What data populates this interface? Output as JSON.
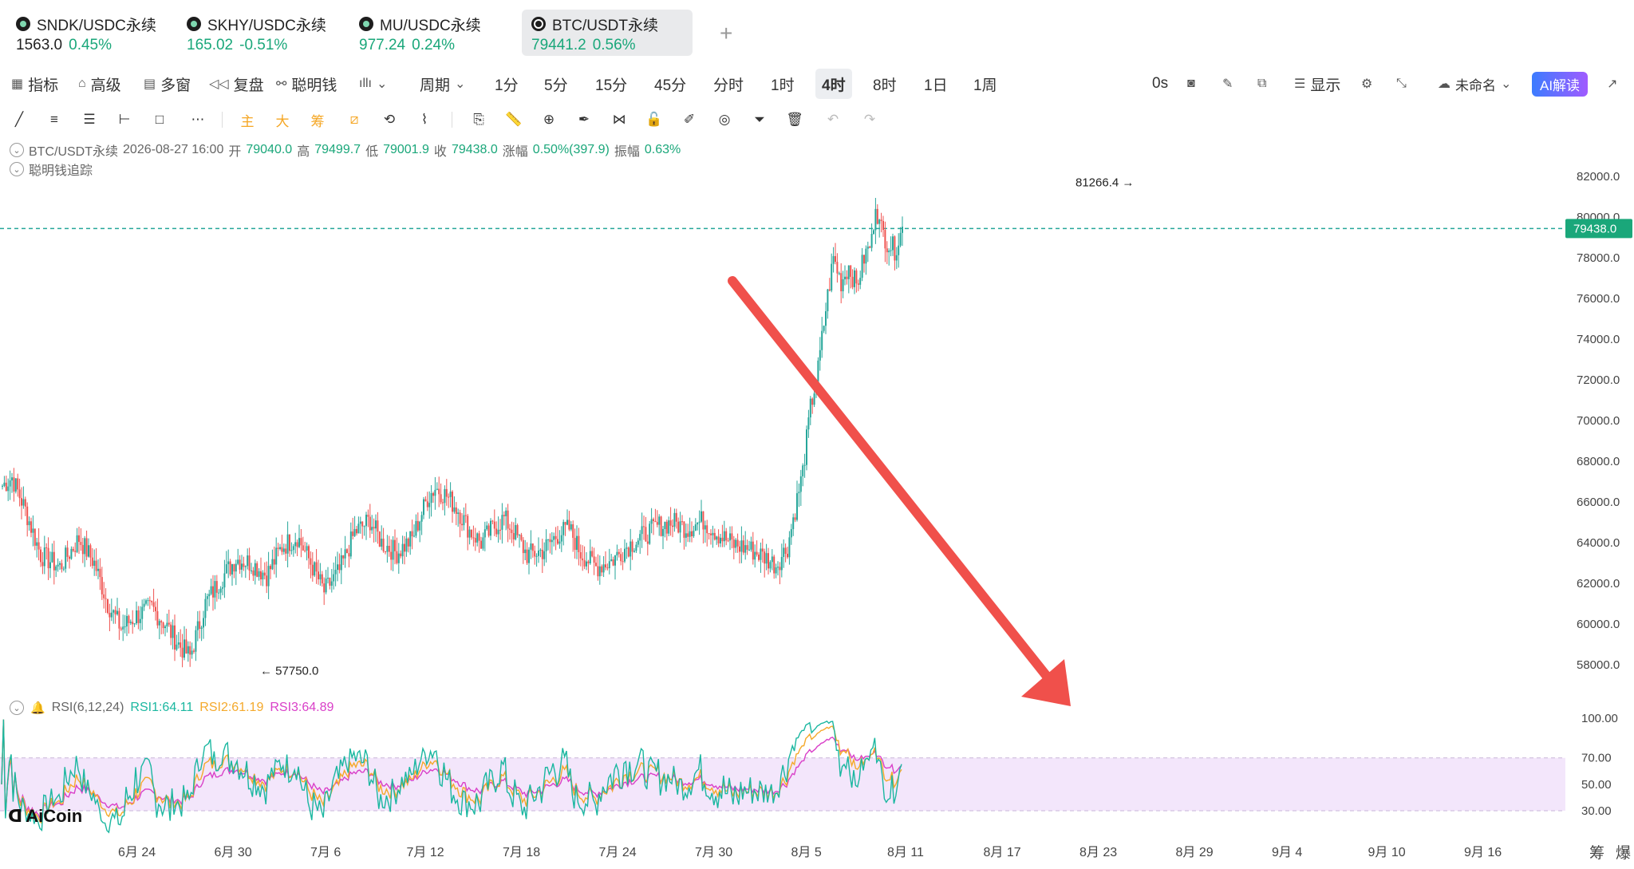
{
  "tabs": [
    {
      "symbol": "SNDK/USDC永续",
      "price": "1563.0",
      "change": "0.45%",
      "icon": "coin-icon"
    },
    {
      "symbol": "SKHY/USDC永续",
      "price": "165.02",
      "change": "-0.51%",
      "icon": "coin-icon"
    },
    {
      "symbol": "MU/USDC永续",
      "price": "977.24",
      "change": "0.24%",
      "icon": "coin-icon"
    },
    {
      "symbol": "BTC/USDT永续",
      "price": "79441.2",
      "change": "0.56%",
      "icon": "xrp-icon",
      "active": true
    }
  ],
  "tab_add": "+",
  "toolbar": {
    "indicators": "指标",
    "advanced": "高级",
    "multi_window": "多窗",
    "replay": "复盘",
    "smart_money": "聪明钱",
    "period": "周期",
    "intervals": [
      "1分",
      "5分",
      "15分",
      "45分",
      "分时",
      "1时",
      "4时",
      "8时",
      "1日",
      "1周"
    ],
    "active_interval": "4时",
    "timer": "0s",
    "display": "显示",
    "unnamed": "未命名",
    "ai": "AI解读"
  },
  "drawing_tools": {
    "main": "主",
    "big": "大",
    "chips": "筹"
  },
  "info": {
    "symbol": "BTC/USDT永续",
    "datetime": "2026-08-27 16:00",
    "open_label": "开",
    "open": "79040.0",
    "high_label": "高",
    "high": "79499.7",
    "low_label": "低",
    "low": "79001.9",
    "close_label": "收",
    "close": "79438.0",
    "change_label": "涨幅",
    "change": "0.50%(397.9)",
    "amplitude_label": "振幅",
    "amplitude": "0.63%",
    "smart_money_track": "聪明钱追踪"
  },
  "rsi": {
    "label": "RSI(6,12,24)",
    "rsi1": "RSI1:64.11",
    "rsi2": "RSI2:61.19",
    "rsi3": "RSI3:64.89"
  },
  "chart_data": {
    "type": "candlestick",
    "y_ticks": [
      82000,
      80000,
      78000,
      76000,
      74000,
      72000,
      70000,
      68000,
      66000,
      64000,
      62000,
      60000,
      58000
    ],
    "y_tick_labels": [
      "82000.0",
      "80000.0",
      "78000.0",
      "76000.0",
      "74000.0",
      "72000.0",
      "70000.0",
      "68000.0",
      "66000.0",
      "64000.0",
      "62000.0",
      "60000.0",
      "58000.0"
    ],
    "ylim": [
      57000,
      83000
    ],
    "x_tick_labels": [
      "6月 24",
      "6月 30",
      "7月 6",
      "7月 12",
      "7月 18",
      "7月 24",
      "7月 30",
      "8月 5",
      "8月 11",
      "8月 17",
      "8月 23",
      "8月 29",
      "9月 4",
      "9月 10",
      "9月 16"
    ],
    "current_price": "79438.0",
    "current_price_value": 79438,
    "max_marker": "81266.4",
    "max_value": 81266.4,
    "min_marker": "57750.0",
    "min_value": 57750,
    "anchors": [
      [
        0,
        66800
      ],
      [
        5,
        67200
      ],
      [
        12,
        65600
      ],
      [
        20,
        63400
      ],
      [
        30,
        62800
      ],
      [
        40,
        64200
      ],
      [
        48,
        63000
      ],
      [
        55,
        61000
      ],
      [
        62,
        59800
      ],
      [
        70,
        60400
      ],
      [
        78,
        60800
      ],
      [
        85,
        60000
      ],
      [
        92,
        59000
      ],
      [
        98,
        58400
      ],
      [
        106,
        61000
      ],
      [
        114,
        62200
      ],
      [
        122,
        63200
      ],
      [
        130,
        63000
      ],
      [
        138,
        62400
      ],
      [
        146,
        63800
      ],
      [
        154,
        64300
      ],
      [
        160,
        63200
      ],
      [
        168,
        61600
      ],
      [
        176,
        62600
      ],
      [
        184,
        64500
      ],
      [
        192,
        65100
      ],
      [
        198,
        64000
      ],
      [
        206,
        63500
      ],
      [
        214,
        64200
      ],
      [
        222,
        66200
      ],
      [
        226,
        66700
      ],
      [
        232,
        66300
      ],
      [
        238,
        65600
      ],
      [
        244,
        64600
      ],
      [
        250,
        64000
      ],
      [
        256,
        64700
      ],
      [
        262,
        65200
      ],
      [
        268,
        64400
      ],
      [
        274,
        63400
      ],
      [
        282,
        63600
      ],
      [
        290,
        64400
      ],
      [
        296,
        64700
      ],
      [
        302,
        63500
      ],
      [
        310,
        62800
      ],
      [
        318,
        63100
      ],
      [
        326,
        63800
      ],
      [
        334,
        64300
      ],
      [
        342,
        64800
      ],
      [
        350,
        65000
      ],
      [
        358,
        64700
      ],
      [
        366,
        65100
      ],
      [
        374,
        64400
      ],
      [
        382,
        63900
      ],
      [
        390,
        63700
      ],
      [
        398,
        63300
      ],
      [
        404,
        62900
      ],
      [
        410,
        63800
      ],
      [
        418,
        67500
      ],
      [
        422,
        70600
      ],
      [
        426,
        72500
      ],
      [
        430,
        75500
      ],
      [
        434,
        78000
      ],
      [
        438,
        76800
      ],
      [
        442,
        77600
      ],
      [
        446,
        76600
      ],
      [
        450,
        78000
      ],
      [
        454,
        78800
      ],
      [
        456,
        80800
      ],
      [
        458,
        79600
      ],
      [
        462,
        78800
      ],
      [
        466,
        78400
      ],
      [
        470,
        79400
      ]
    ],
    "candle_count": 471,
    "rsi_ylim": [
      0,
      100
    ],
    "rsi_ticks": [
      100,
      70,
      50,
      30
    ],
    "rsi_tick_labels": [
      "100.00",
      "70.00",
      "50.00",
      "30.00"
    ],
    "rsi_series": [
      {
        "name": "RSI1",
        "color": "#1ab7a0"
      },
      {
        "name": "RSI2",
        "color": "#f4a92b"
      },
      {
        "name": "RSI3",
        "color": "#d93fc8"
      }
    ]
  },
  "logo": "AiCoin",
  "bottom_right": [
    "筹",
    "爆"
  ],
  "colors": {
    "up": "#26a69a",
    "down": "#ef5350",
    "accent_green": "#1aa77a",
    "arrow": "#f0504b",
    "rsi_band": "#f3e6fb"
  }
}
